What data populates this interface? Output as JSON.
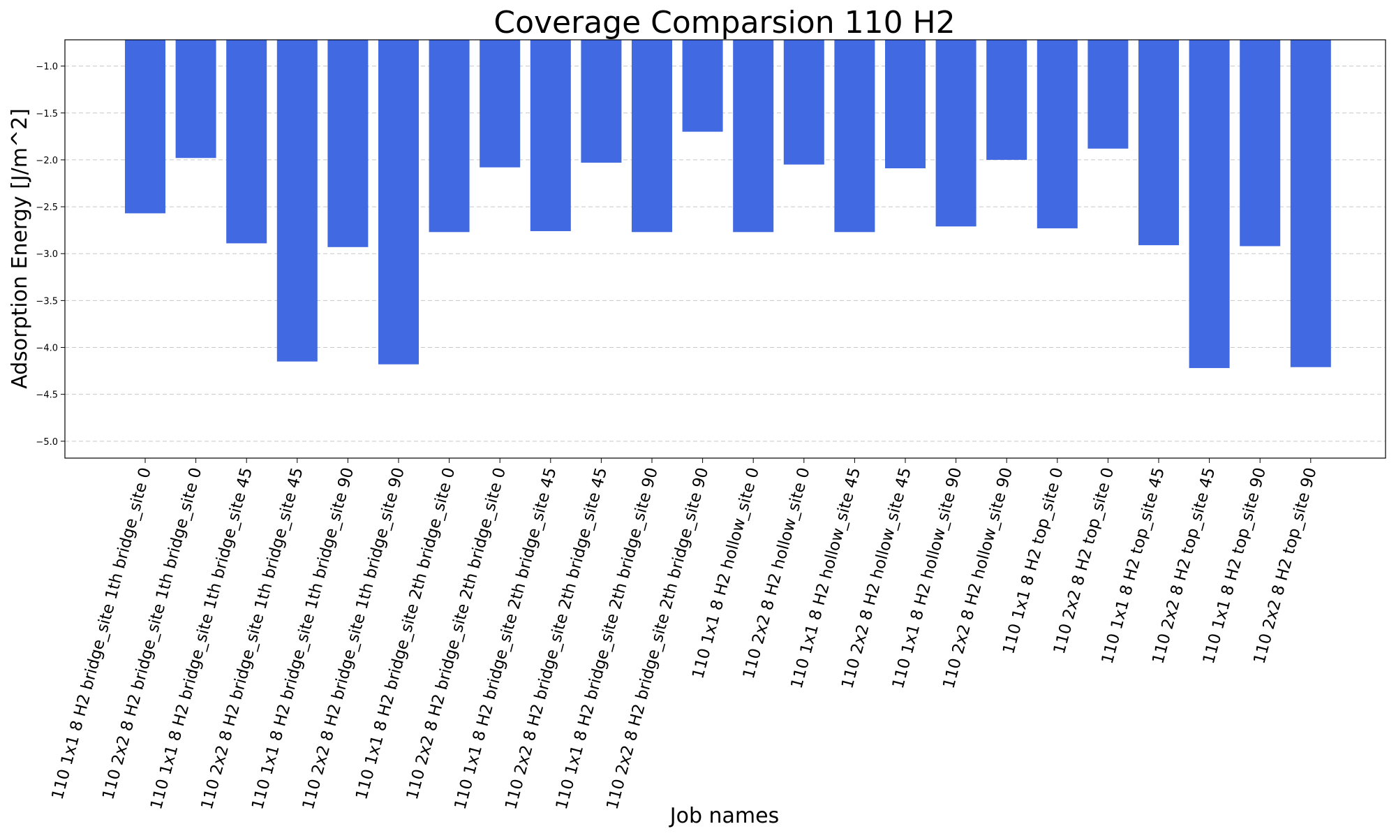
{
  "chart_data": {
    "type": "bar",
    "title": "Coverage Comparsion 110 H2",
    "xlabel": "Job names",
    "ylabel": "Adsorption Energy [J/m^2]",
    "ylim": [
      -5.18,
      -0.72
    ],
    "yticks": [
      -1.0,
      -1.5,
      -2.0,
      -2.5,
      -3.0,
      -3.5,
      -4.0,
      -4.5,
      -5.0
    ],
    "ytick_labels": [
      "−1.0",
      "−1.5",
      "−2.0",
      "−2.5",
      "−3.0",
      "−3.5",
      "−4.0",
      "−4.5",
      "−5.0"
    ],
    "grid": "horizontal dashed",
    "bar_color": "#4169e1",
    "categories": [
      "110 1x1 8 H2 bridge_site 1th bridge_site 0",
      "110 2x2 8 H2 bridge_site 1th bridge_site 0",
      "110 1x1 8 H2 bridge_site 1th bridge_site 45",
      "110 2x2 8 H2 bridge_site 1th bridge_site 45",
      "110 1x1 8 H2 bridge_site 1th bridge_site 90",
      "110 2x2 8 H2 bridge_site 1th bridge_site 90",
      "110 1x1 8 H2 bridge_site 2th bridge_site 0",
      "110 2x2 8 H2 bridge_site 2th bridge_site 0",
      "110 1x1 8 H2 bridge_site 2th bridge_site 45",
      "110 2x2 8 H2 bridge_site 2th bridge_site 45",
      "110 1x1 8 H2 bridge_site 2th bridge_site 90",
      "110 2x2 8 H2 bridge_site 2th bridge_site 90",
      "110 1x1 8 H2 hollow_site 0",
      "110 2x2 8 H2 hollow_site 0",
      "110 1x1 8 H2 hollow_site 45",
      "110 2x2 8 H2 hollow_site 45",
      "110 1x1 8 H2 hollow_site 90",
      "110 2x2 8 H2 hollow_site 90",
      "110 1x1 8 H2 top_site 0",
      "110 2x2 8 H2 top_site 0",
      "110 1x1 8 H2 top_site 45",
      "110 2x2 8 H2 top_site 45",
      "110 1x1 8 H2 top_site 90",
      "110 2x2 8 H2 top_site 90"
    ],
    "values": [
      -2.57,
      -1.98,
      -2.89,
      -4.15,
      -2.93,
      -4.18,
      -2.77,
      -2.08,
      -2.76,
      -2.03,
      -2.77,
      -1.7,
      -2.77,
      -2.05,
      -2.77,
      -2.09,
      -2.71,
      -2.0,
      -2.73,
      -1.88,
      -2.91,
      -4.22,
      -2.92,
      -4.21
    ]
  }
}
